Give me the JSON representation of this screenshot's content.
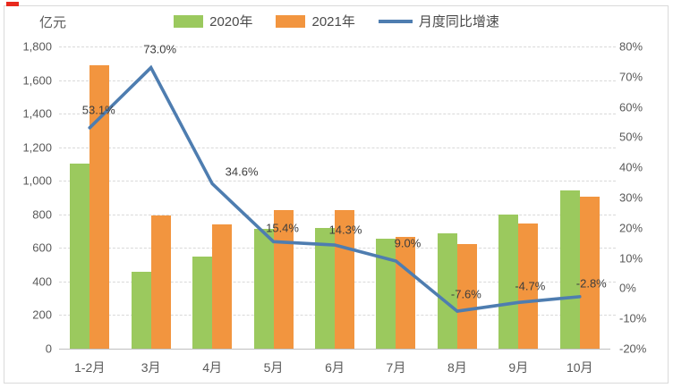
{
  "decor": {
    "corner_mark_color": "#e8291d"
  },
  "chart_data": {
    "type": "combo-bar-line",
    "title": "",
    "unit_label": "亿元",
    "categories": [
      "1-2月",
      "3月",
      "4月",
      "5月",
      "6月",
      "7月",
      "8月",
      "9月",
      "10月"
    ],
    "series": [
      {
        "name": "2020年",
        "type": "bar",
        "axis": "left",
        "color": "#9bc95e",
        "values": [
          1100,
          460,
          550,
          715,
          720,
          655,
          685,
          800,
          940
        ]
      },
      {
        "name": "2021年",
        "type": "bar",
        "axis": "left",
        "color": "#f2953f",
        "values": [
          1690,
          796,
          740,
          825,
          823,
          665,
          625,
          748,
          905
        ]
      },
      {
        "name": "月度同比增速",
        "type": "line",
        "axis": "right",
        "color": "#4e7db0",
        "values": [
          53.1,
          73.0,
          34.6,
          15.4,
          14.3,
          9.0,
          -7.6,
          -4.7,
          -2.8
        ],
        "point_labels": [
          "53.1%",
          "73.0%",
          "34.6%",
          "15.4%",
          "14.3%",
          "9.0%",
          "-7.6%",
          "-4.7%",
          "-2.8%"
        ]
      }
    ],
    "left_axis": {
      "min": 0,
      "max": 1800,
      "step": 200,
      "tick_labels_top_first": [
        "1,800",
        "1,600",
        "1,400",
        "1,200",
        "1,000",
        "800",
        "600",
        "400",
        "200",
        "0"
      ]
    },
    "right_axis": {
      "min": -20,
      "max": 80,
      "step": 10,
      "tick_labels_top_first": [
        "80%",
        "70%",
        "60%",
        "50%",
        "40%",
        "30%",
        "20%",
        "10%",
        "0%",
        "-10%",
        "-20%"
      ]
    },
    "grid": {
      "horizontal": true,
      "style": "dashed",
      "color": "#d9d9d9",
      "legend_position": "top"
    }
  }
}
